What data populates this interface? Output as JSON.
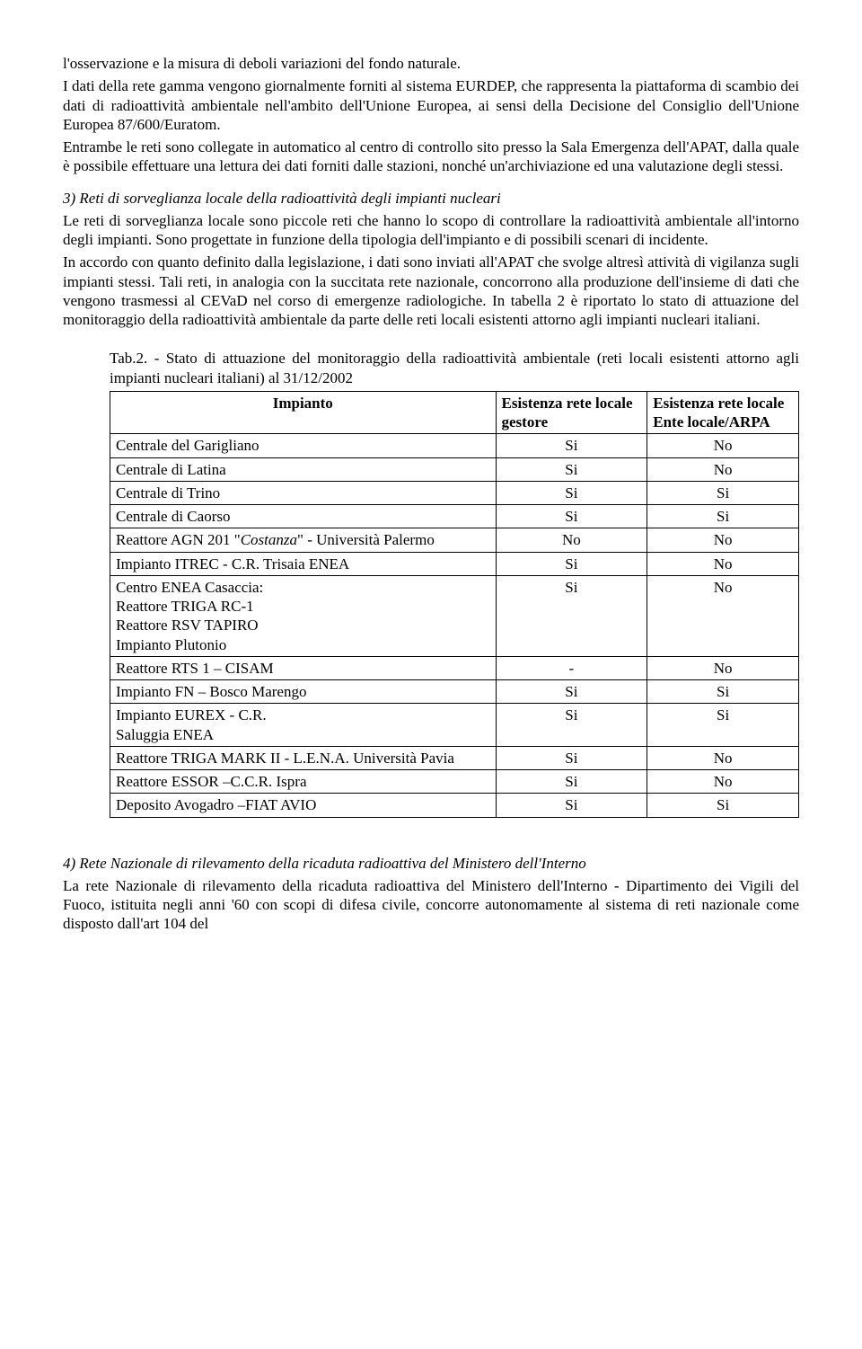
{
  "paragraphs": {
    "p1": "l'osservazione e la misura di deboli variazioni del fondo naturale.",
    "p2": "I dati della rete gamma vengono giornalmente forniti al sistema EURDEP, che rappresenta la piattaforma di scambio dei dati di radioattività ambientale nell'ambito dell'Unione Europea, ai sensi della Decisione del Consiglio dell'Unione Europea 87/600/Euratom.",
    "p3": "Entrambe le reti sono collegate in automatico al centro di controllo sito presso la Sala Emergenza dell'APAT, dalla quale è possibile effettuare una lettura dei dati forniti dalle stazioni, nonché un'archiviazione ed una valutazione degli stessi.",
    "s3_title": "3)   Reti di sorveglianza locale della radioattività degli impianti nucleari",
    "s3_p1": "Le reti di sorveglianza locale sono piccole reti che hanno lo scopo di controllare la radioattività ambientale all'intorno degli impianti. Sono progettate in funzione della tipologia dell'impianto e di possibili scenari di incidente.",
    "s3_p2": "In accordo con quanto definito dalla legislazione, i dati sono inviati all'APAT che svolge altresì attività di vigilanza sugli impianti stessi.  Tali reti, in analogia con la succitata rete nazionale, concorrono alla produzione dell'insieme di dati che vengono trasmessi al CEVaD  nel corso di emergenze radiologiche. In tabella 2 è riportato lo stato di attuazione del monitoraggio della radioattività ambientale da parte delle reti locali esistenti attorno agli impianti nucleari italiani.",
    "tab_caption": "Tab.2. - Stato di attuazione del monitoraggio della radioattività ambientale (reti locali esistenti attorno agli impianti nucleari italiani) al 31/12/2002",
    "s4_title": "4)   Rete Nazionale di rilevamento della ricaduta radioattiva del Ministero dell'Interno",
    "s4_p1": "La rete Nazionale di rilevamento della ricaduta radioattiva del Ministero dell'Interno - Dipartimento dei Vigili del Fuoco, istituita negli anni '60 con scopi di difesa civile, concorre autonomamente al sistema di reti nazionale come disposto dall'art 104 del"
  },
  "table": {
    "headers": [
      "Impianto",
      "Esistenza rete locale gestore",
      "Esistenza rete locale Ente locale/ARPA"
    ],
    "rows": [
      [
        "Centrale del Garigliano",
        "Si",
        "No"
      ],
      [
        "Centrale di Latina",
        "Si",
        "No"
      ],
      [
        "Centrale di Trino",
        "Si",
        "Si"
      ],
      [
        "Centrale di Caorso",
        "Si",
        "Si"
      ],
      [
        "Reattore AGN 201 \"Costanza\" - Università Palermo",
        "No",
        "No"
      ],
      [
        "Impianto ITREC - C.R. Trisaia ENEA",
        "Si",
        "No"
      ],
      [
        "Centro ENEA Casaccia:\n            Reattore TRIGA RC-1\n            Reattore RSV TAPIRO\n            Impianto Plutonio",
        "Si",
        "No"
      ],
      [
        "Reattore RTS 1 – CISAM",
        "-",
        "No"
      ],
      [
        "Impianto FN – Bosco Marengo",
        "Si",
        "Si"
      ],
      [
        "Impianto EUREX - C.R.\nSaluggia ENEA",
        "Si",
        "Si"
      ],
      [
        "Reattore TRIGA MARK II - L.E.N.A. Università Pavia",
        "Si",
        "No"
      ],
      [
        "Reattore ESSOR –C.C.R. Ispra",
        "Si",
        "No"
      ],
      [
        "Deposito Avogadro –FIAT AVIO",
        "Si",
        "Si"
      ]
    ],
    "italic_word_row": 4,
    "italic_word": "Costanza"
  }
}
